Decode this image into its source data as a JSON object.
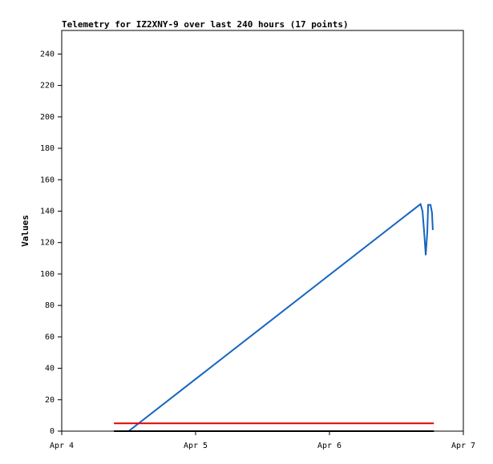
{
  "chart_data": {
    "type": "line",
    "title": "Telemetry for IZ2XNY-9 over last 240 hours (17 points)",
    "y_label": "Values",
    "xlim": [
      4,
      7
    ],
    "xticks": [
      {
        "value": 4,
        "label": "Apr 4"
      },
      {
        "value": 5,
        "label": "Apr 5"
      },
      {
        "value": 6,
        "label": "Apr 6"
      },
      {
        "value": 7,
        "label": "Apr 7"
      }
    ],
    "ylim": [
      0,
      255
    ],
    "yticks": [
      0,
      20,
      40,
      60,
      80,
      100,
      120,
      140,
      160,
      180,
      200,
      220,
      240
    ],
    "grid": false,
    "series": [
      {
        "color": "#1565c0",
        "x": [
          4.5,
          6.68,
          6.695,
          6.707,
          6.719,
          6.731,
          6.737,
          6.755,
          6.766,
          6.772
        ],
        "values": [
          0,
          144.5,
          140,
          127,
          112,
          127,
          144,
          144,
          139,
          128
        ]
      },
      {
        "color": "#e00000",
        "x": [
          4.39,
          6.78
        ],
        "values": [
          5,
          5
        ]
      },
      {
        "color": "#000000",
        "x": [
          4.39,
          6.78
        ],
        "values": [
          0,
          0
        ]
      }
    ]
  }
}
